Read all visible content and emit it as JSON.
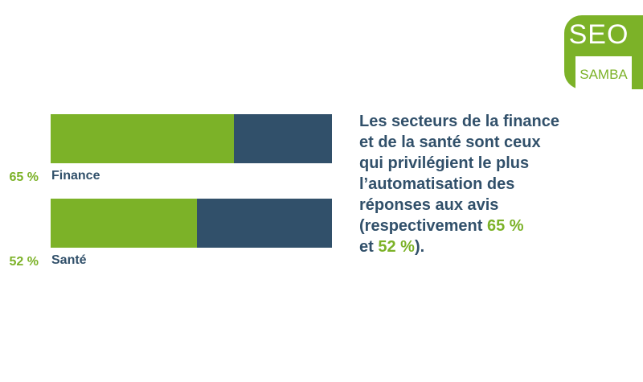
{
  "logo": {
    "top": "SEO",
    "bottom": "SAMBA"
  },
  "colors": {
    "green": "#7cb228",
    "navy": "#31506a"
  },
  "chart_data": {
    "type": "bar",
    "orientation": "horizontal-stacked-100",
    "categories": [
      "Finance",
      "Santé"
    ],
    "values": [
      65,
      52
    ],
    "value_labels": [
      "65 %",
      "52 %"
    ],
    "xlim": [
      0,
      100
    ],
    "title": "",
    "xlabel": "",
    "ylabel": ""
  },
  "text": {
    "line1": "Les secteurs de la finance",
    "line2": "et de la santé sont ceux",
    "line3": "qui privilégient le plus",
    "line4": "l’automatisation des",
    "line5": "réponses aux avis",
    "line6_prefix": "(respectivement ",
    "line6_value": "65 %",
    "line7_prefix": "et ",
    "line7_value": "52 %",
    "line7_suffix": ")."
  }
}
